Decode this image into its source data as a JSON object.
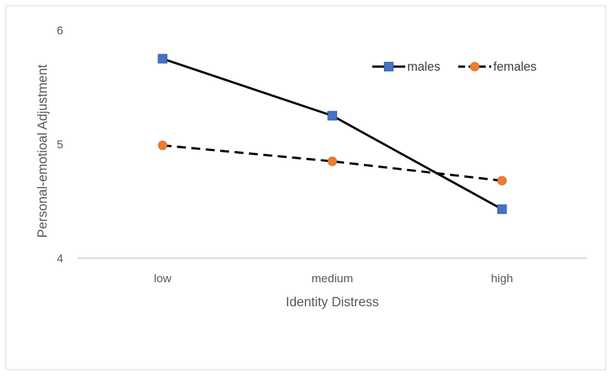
{
  "chart_data": {
    "type": "line",
    "title": "",
    "xlabel": "Identity Distress",
    "ylabel": "Personal-emotioal Adjustment",
    "categories": [
      "low",
      "medium",
      "high"
    ],
    "ylim": [
      4,
      6
    ],
    "yticks": [
      "4",
      "5",
      "6"
    ],
    "grid": false,
    "legend": "top-right",
    "series": [
      {
        "name": "males",
        "values": [
          5.75,
          5.25,
          4.43
        ],
        "line_style": "solid",
        "line_color": "#000000",
        "marker": "square",
        "marker_color": "#4472C4"
      },
      {
        "name": "females",
        "values": [
          4.99,
          4.85,
          4.68
        ],
        "line_style": "dashed",
        "line_color": "#000000",
        "marker": "circle",
        "marker_color": "#ED7D31"
      }
    ]
  }
}
